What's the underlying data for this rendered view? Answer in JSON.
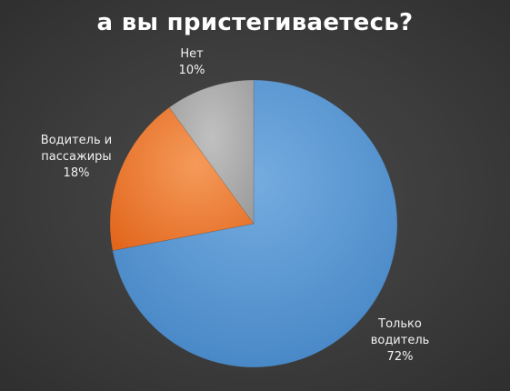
{
  "chart_data": {
    "type": "pie",
    "title": "а вы пристегиваетесь?",
    "categories": [
      "Только водитель",
      "Водитель и пассажиры",
      "Нет"
    ],
    "values": [
      72,
      18,
      10
    ],
    "unit": "%",
    "legend": "none",
    "colors": [
      "#5b9bd5",
      "#ed7d31",
      "#a5a5a5"
    ],
    "labels": [
      {
        "lines": [
          "Только",
          "водитель"
        ],
        "value_text": "72%"
      },
      {
        "lines": [
          "Водитель и",
          "пассажиры"
        ],
        "value_text": "18%"
      },
      {
        "lines": [
          "Нет"
        ],
        "value_text": "10%"
      }
    ]
  }
}
